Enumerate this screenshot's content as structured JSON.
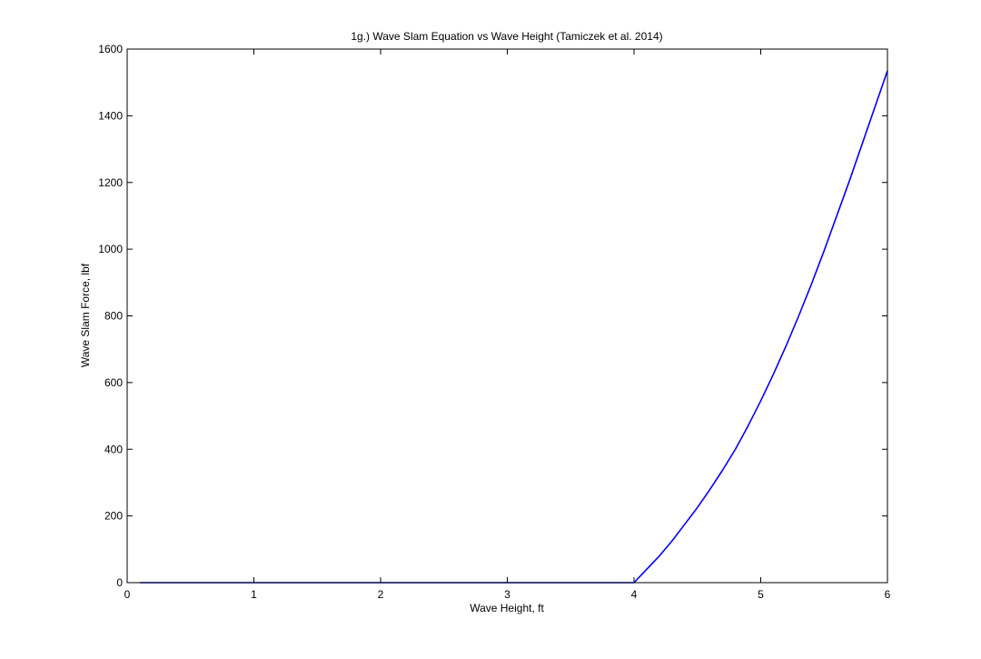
{
  "chart_data": {
    "type": "line",
    "title": "1g.) Wave Slam Equation vs Wave Height (Tamiczek et al. 2014)",
    "xlabel": "Wave Height, ft",
    "ylabel": "Wave Slam Force, lbf",
    "xlim": [
      0,
      6
    ],
    "ylim": [
      0,
      1600
    ],
    "xticks": [
      0,
      1,
      2,
      3,
      4,
      5,
      6
    ],
    "yticks": [
      0,
      200,
      400,
      600,
      800,
      1000,
      1200,
      1400,
      1600
    ],
    "xtick_labels": [
      "0",
      "1",
      "2",
      "3",
      "4",
      "5",
      "6"
    ],
    "ytick_labels": [
      "0",
      "200",
      "400",
      "600",
      "800",
      "1000",
      "1200",
      "1400",
      "1600"
    ],
    "grid": false,
    "series": [
      {
        "color": "#0000ff",
        "x": [
          0.1,
          1.0,
          2.0,
          3.0,
          4.0,
          4.1,
          4.2,
          4.3,
          4.4,
          4.5,
          4.6,
          4.7,
          4.8,
          4.9,
          5.0,
          5.1,
          5.2,
          5.3,
          5.4,
          5.5,
          5.6,
          5.7,
          5.8,
          5.9,
          6.0
        ],
        "y": [
          0,
          0,
          0,
          0,
          0,
          40,
          80,
          125,
          175,
          225,
          280,
          338,
          400,
          470,
          545,
          625,
          710,
          800,
          895,
          995,
          1100,
          1205,
          1315,
          1425,
          1535
        ]
      }
    ]
  }
}
